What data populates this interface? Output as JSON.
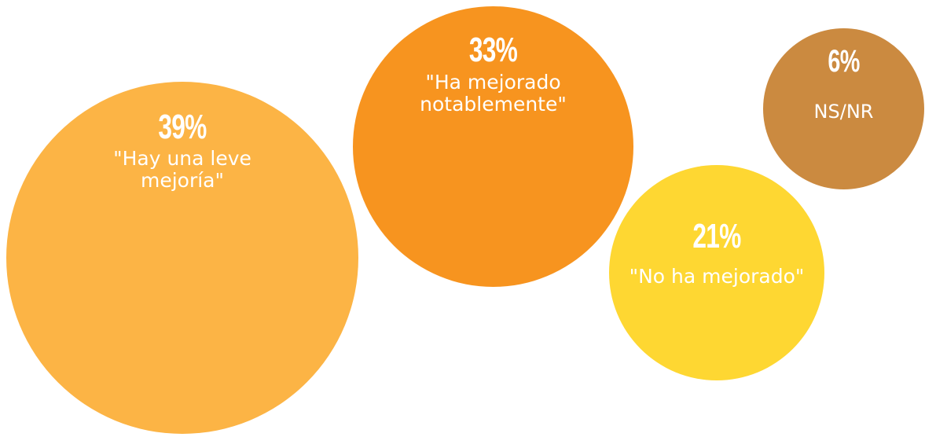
{
  "chart_data": {
    "type": "bubble",
    "title": "",
    "items": [
      {
        "id": "b1",
        "value": 39,
        "percent_label": "39%",
        "label_lines": [
          "\"Hay una leve",
          "mejoría\""
        ],
        "color": "#FCB445"
      },
      {
        "id": "b2",
        "value": 33,
        "percent_label": "33%",
        "label_lines": [
          "\"Ha mejorado",
          "notablemente\""
        ],
        "color": "#F7941F"
      },
      {
        "id": "b3",
        "value": 21,
        "percent_label": "21%",
        "label_lines": [
          "\"No ha mejorado\""
        ],
        "color": "#FED732"
      },
      {
        "id": "b4",
        "value": 6,
        "percent_label": "6%",
        "label_lines": [
          "NS/NR"
        ],
        "color": "#CB8A40"
      }
    ]
  }
}
